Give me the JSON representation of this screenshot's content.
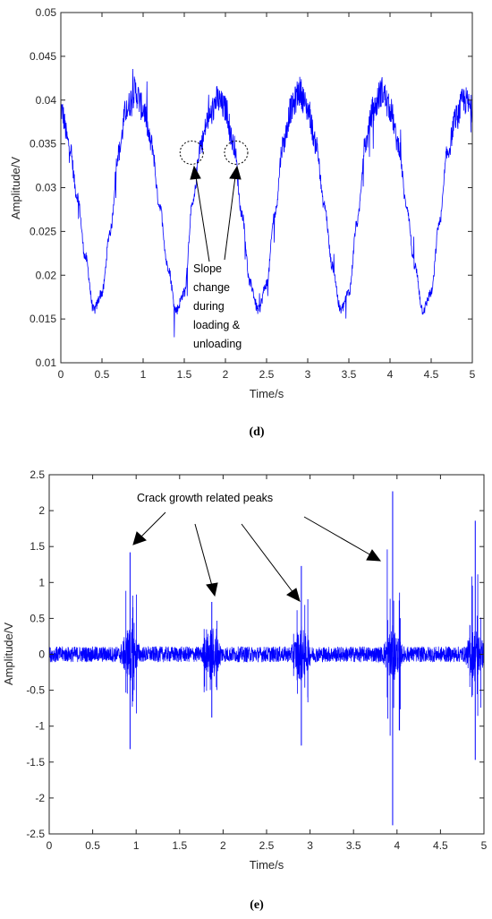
{
  "chart_data": [
    {
      "type": "line",
      "panel_label": "(d)",
      "xlabel": "Time/s",
      "ylabel": "Amplitude/V",
      "xlim": [
        0,
        5
      ],
      "ylim": [
        0.01,
        0.05
      ],
      "xticks": [
        0,
        0.5,
        1,
        1.5,
        2,
        2.5,
        3,
        3.5,
        4,
        4.5,
        5
      ],
      "yticks": [
        0.01,
        0.015,
        0.02,
        0.025,
        0.03,
        0.035,
        0.04,
        0.045,
        0.05
      ],
      "xtick_labels": [
        "0",
        "0.5",
        "1",
        "1.5",
        "2",
        "2.5",
        "3",
        "3.5",
        "4",
        "4.5",
        "5"
      ],
      "ytick_labels": [
        "0.01",
        "0.015",
        "0.02",
        "0.025",
        "0.03",
        "0.035",
        "0.04",
        "0.045",
        "0.05"
      ],
      "grid": false,
      "color": "#0000ff",
      "series": [
        {
          "x": [
            0,
            0.1,
            0.2,
            0.3,
            0.4,
            0.5,
            0.6,
            0.7,
            0.8,
            0.9,
            1.0,
            1.1,
            1.2,
            1.3,
            1.4,
            1.5,
            1.6,
            1.7,
            1.8,
            1.9,
            2.0,
            2.1,
            2.2,
            2.3,
            2.4,
            2.5,
            2.6,
            2.7,
            2.8,
            2.9,
            3.0,
            3.1,
            3.2,
            3.3,
            3.4,
            3.5,
            3.6,
            3.7,
            3.8,
            3.9,
            4.0,
            4.1,
            4.2,
            4.3,
            4.4,
            4.5,
            4.6,
            4.7,
            4.8,
            4.9,
            5.0
          ],
          "values": [
            0.039,
            0.035,
            0.029,
            0.022,
            0.016,
            0.018,
            0.025,
            0.034,
            0.039,
            0.041,
            0.039,
            0.035,
            0.028,
            0.021,
            0.016,
            0.018,
            0.028,
            0.035,
            0.038,
            0.04,
            0.039,
            0.035,
            0.027,
            0.019,
            0.016,
            0.019,
            0.027,
            0.035,
            0.039,
            0.041,
            0.039,
            0.035,
            0.028,
            0.021,
            0.016,
            0.018,
            0.026,
            0.035,
            0.039,
            0.041,
            0.039,
            0.035,
            0.028,
            0.021,
            0.016,
            0.018,
            0.026,
            0.034,
            0.038,
            0.04,
            0.039
          ]
        }
      ],
      "annotations": [
        {
          "lines": [
            "Slope",
            "change",
            "during",
            "loading &",
            "unloading"
          ]
        }
      ],
      "circled_points": [
        [
          1.59,
          0.034
        ],
        [
          2.13,
          0.034
        ]
      ]
    },
    {
      "type": "line",
      "panel_label": "(e)",
      "xlabel": "Time/s",
      "ylabel": "Amplitude/V",
      "xlim": [
        0,
        5
      ],
      "ylim": [
        -2.5,
        2.5
      ],
      "xticks": [
        0,
        0.5,
        1,
        1.5,
        2,
        2.5,
        3,
        3.5,
        4,
        4.5,
        5
      ],
      "yticks": [
        -2.5,
        -2,
        -1.5,
        -1,
        -0.5,
        0,
        0.5,
        1,
        1.5,
        2,
        2.5
      ],
      "xtick_labels": [
        "0",
        "0.5",
        "1",
        "1.5",
        "2",
        "2.5",
        "3",
        "3.5",
        "4",
        "4.5",
        "5"
      ],
      "ytick_labels": [
        "-2.5",
        "-2",
        "-1.5",
        "-1",
        "-0.5",
        "0",
        "0.5",
        "1",
        "1.5",
        "2",
        "2.5"
      ],
      "grid": false,
      "color": "#0000ff",
      "peaks": [
        {
          "x": 0.93,
          "max": 1.42,
          "min": -1.32
        },
        {
          "x": 1.87,
          "max": 0.73,
          "min": -0.88
        },
        {
          "x": 2.9,
          "max": 1.23,
          "min": -1.27
        },
        {
          "x": 3.95,
          "max": 2.27,
          "min": -2.38
        },
        {
          "x": 4.9,
          "max": 1.86,
          "min": -1.47
        }
      ],
      "annotations": [
        {
          "text": "Crack growth related peaks"
        }
      ]
    }
  ]
}
